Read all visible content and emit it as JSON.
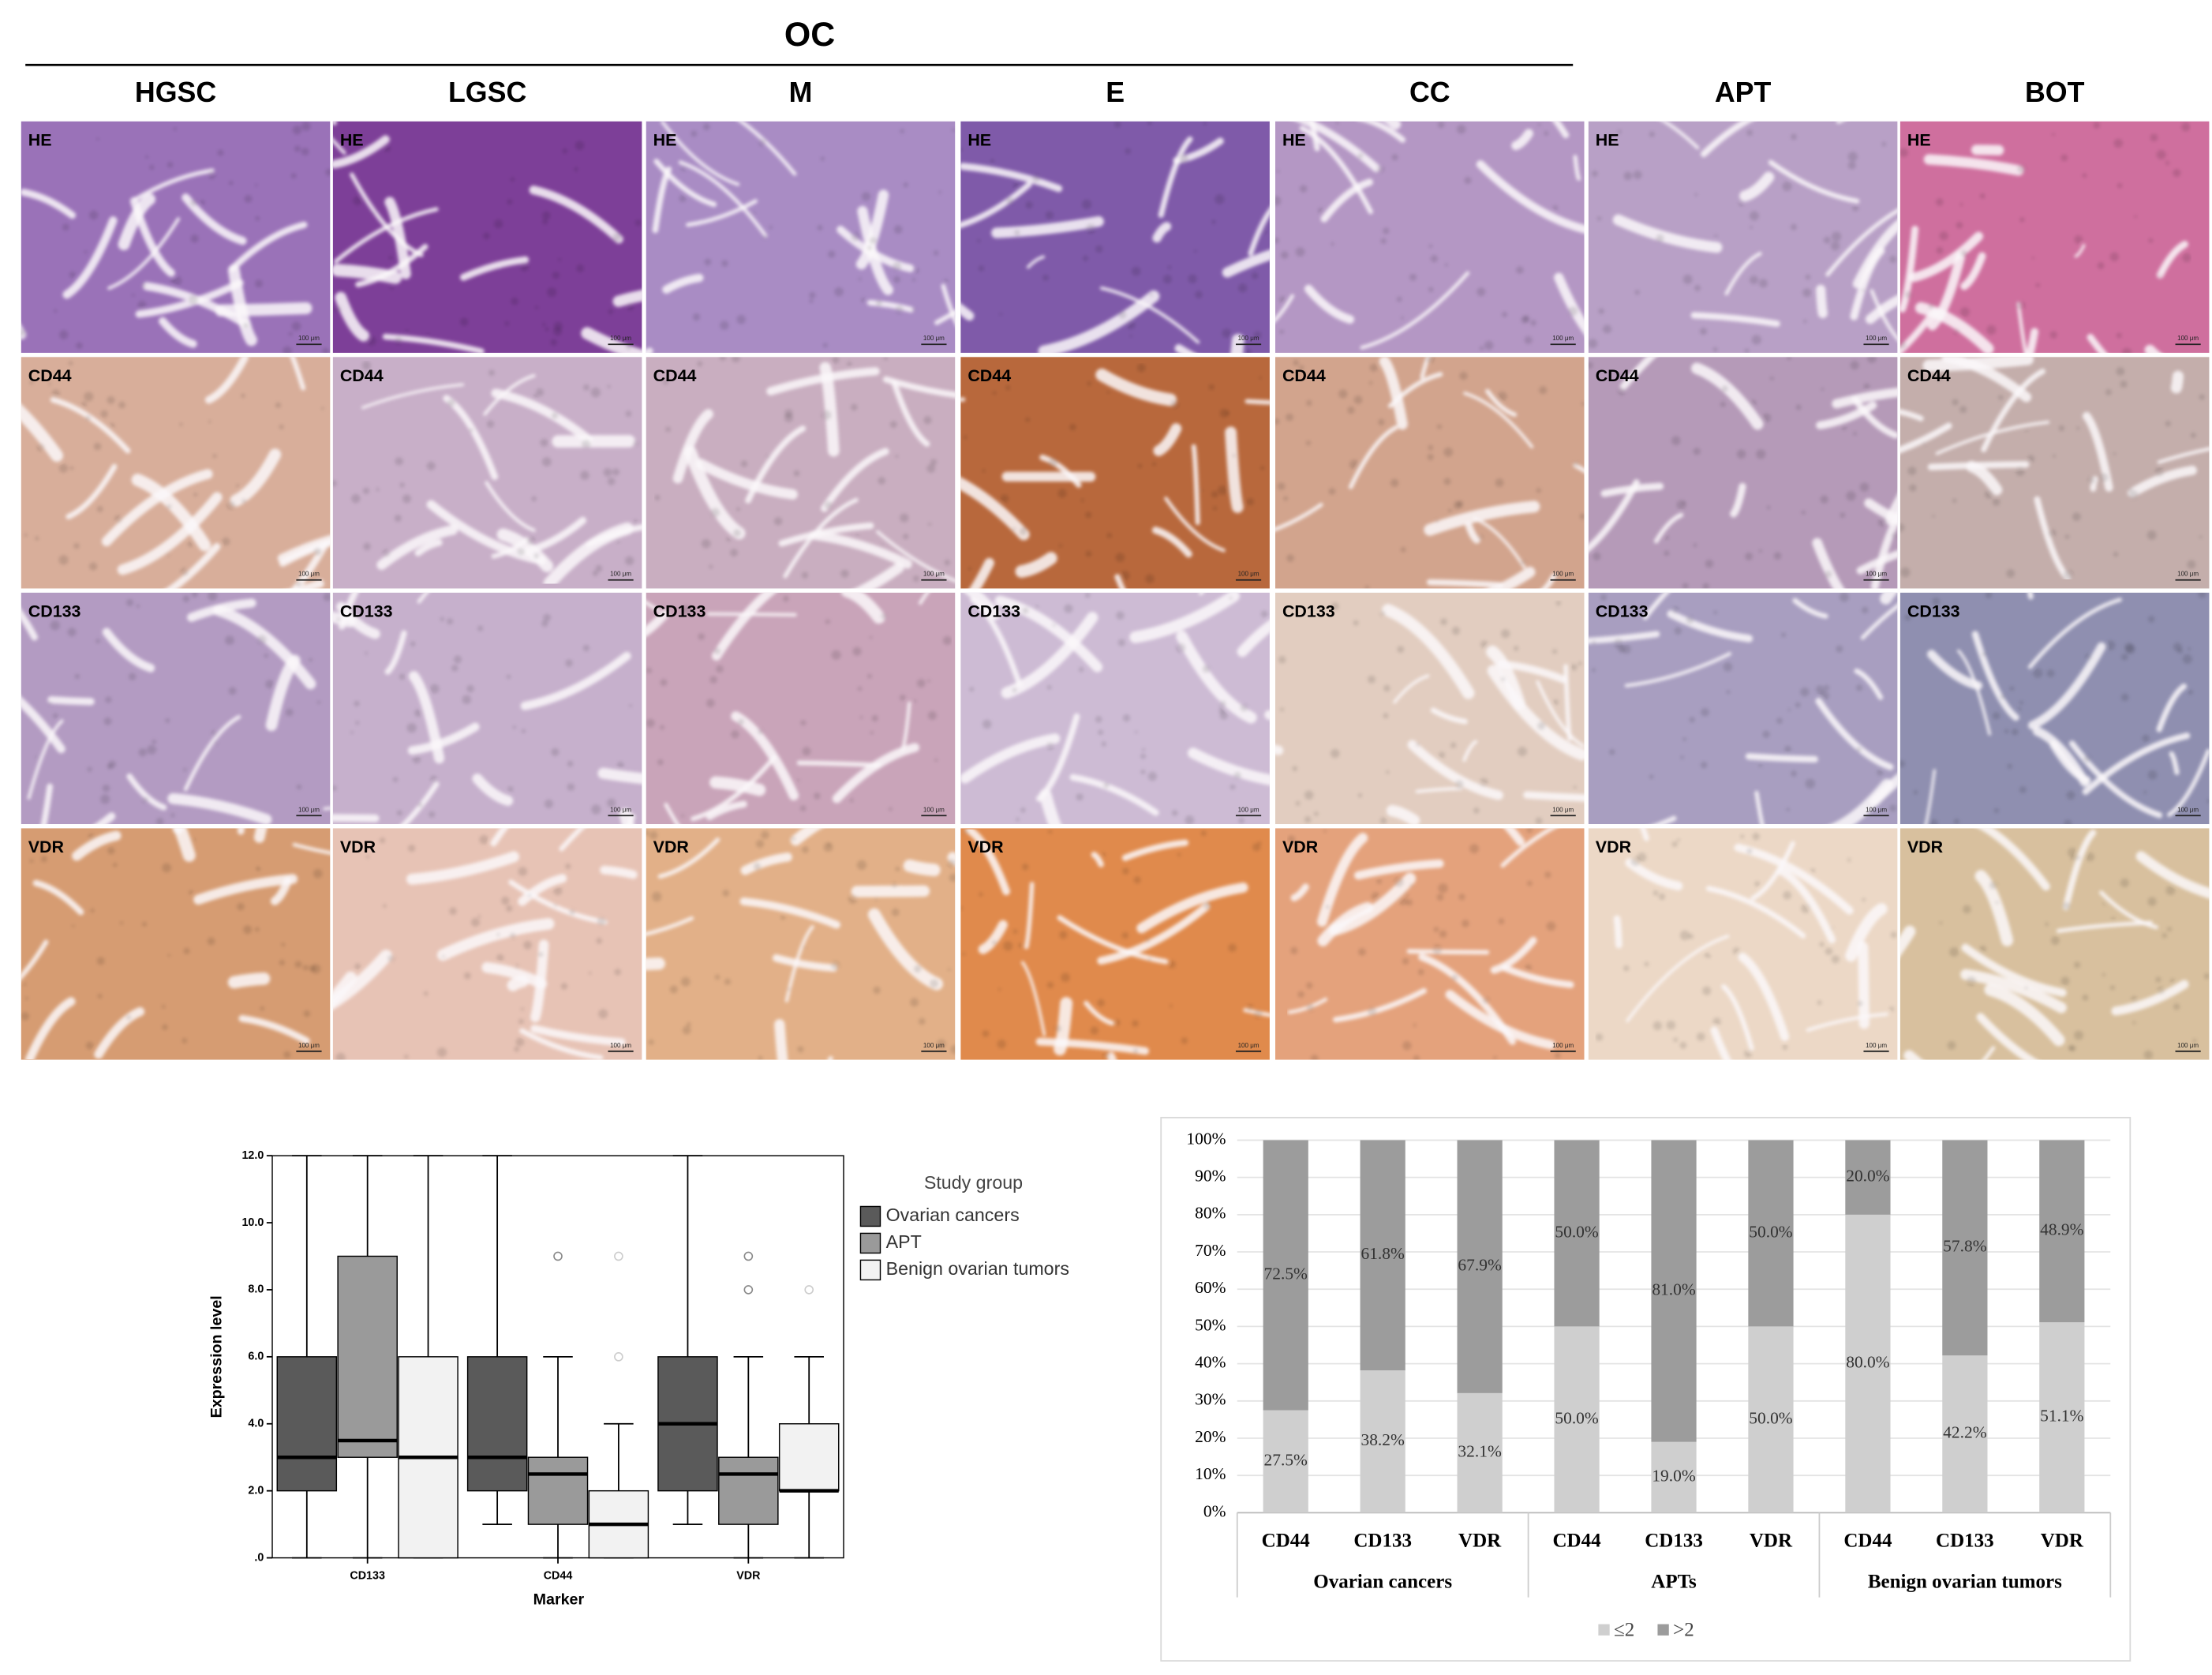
{
  "figure": {
    "group_label": "OC",
    "columns": [
      "HGSC",
      "LGSC",
      "M",
      "E",
      "CC",
      "APT",
      "BOT"
    ],
    "rows": [
      "HE",
      "CD44",
      "CD133",
      "VDR"
    ],
    "scale_bar": "100 μm"
  },
  "chart_data": [
    {
      "type": "box",
      "categories": [
        "CD133",
        "CD44",
        "VDR"
      ],
      "x_label": "Marker",
      "y_label": "Expression level",
      "ylim": [
        0,
        12
      ],
      "yticks": [
        {
          "value": 0,
          "label": ".0"
        },
        {
          "value": 2,
          "label": "2.0"
        },
        {
          "value": 4,
          "label": "4.0"
        },
        {
          "value": 6,
          "label": "6.0"
        },
        {
          "value": 8,
          "label": "8.0"
        },
        {
          "value": 10,
          "label": "10.0"
        },
        {
          "value": 12,
          "label": "12.0"
        }
      ],
      "legend_title": "Study group",
      "series": [
        {
          "name": "Ovarian cancers",
          "color": "#5a5a5a",
          "values": [
            {
              "min": 0,
              "q1": 2,
              "median": 3,
              "q3": 6,
              "max": 12,
              "outliers": []
            },
            {
              "min": 1,
              "q1": 2,
              "median": 3,
              "q3": 6,
              "max": 12,
              "outliers": []
            },
            {
              "min": 1,
              "q1": 2,
              "median": 4,
              "q3": 6,
              "max": 12,
              "outliers": []
            }
          ]
        },
        {
          "name": "APT",
          "color": "#9a9a9a",
          "values": [
            {
              "min": 0,
              "q1": 3,
              "median": 3.5,
              "q3": 9,
              "max": 12,
              "outliers": []
            },
            {
              "min": 0,
              "q1": 1,
              "median": 2.5,
              "q3": 3,
              "max": 6,
              "outliers": [
                9
              ]
            },
            {
              "min": 0,
              "q1": 1,
              "median": 2.5,
              "q3": 3,
              "max": 6,
              "outliers": [
                8,
                9
              ]
            }
          ]
        },
        {
          "name": "Benign ovarian tumors",
          "color": "#f2f2f2",
          "values": [
            {
              "min": 0,
              "q1": 0,
              "median": 3,
              "q3": 6,
              "max": 12,
              "outliers": []
            },
            {
              "min": 0,
              "q1": 0,
              "median": 1,
              "q3": 2,
              "max": 4,
              "outliers": [
                6,
                9
              ]
            },
            {
              "min": 0,
              "q1": 2,
              "median": 2,
              "q3": 4,
              "max": 6,
              "outliers": [
                8
              ]
            }
          ]
        }
      ]
    },
    {
      "type": "stacked_bar",
      "categories": [
        "CD44",
        "CD133",
        "VDR",
        "CD44",
        "CD133",
        "VDR",
        "CD44",
        "CD133",
        "VDR"
      ],
      "groups": [
        "Ovarian cancers",
        "APTs",
        "Benign ovarian tumors"
      ],
      "ylim": [
        0,
        100
      ],
      "yticks": [
        {
          "value": 0,
          "label": "0%"
        },
        {
          "value": 10,
          "label": "10%"
        },
        {
          "value": 20,
          "label": "20%"
        },
        {
          "value": 30,
          "label": "30%"
        },
        {
          "value": 40,
          "label": "40%"
        },
        {
          "value": 50,
          "label": "50%"
        },
        {
          "value": 60,
          "label": "60%"
        },
        {
          "value": 70,
          "label": "70%"
        },
        {
          "value": 80,
          "label": "80%"
        },
        {
          "value": 90,
          "label": "90%"
        },
        {
          "value": 100,
          "label": "100%"
        }
      ],
      "grid": true,
      "legend": "bottom",
      "series": [
        {
          "name": "≤2",
          "color": "#cfcfcf",
          "values": [
            27.5,
            38.2,
            32.1,
            50,
            19,
            50,
            80,
            42.2,
            51.1
          ],
          "value_labels": [
            "27.5%",
            "38.2%",
            "32.1%",
            "50.0%",
            "19.0%",
            "50.0%",
            "80.0%",
            "42.2%",
            "51.1%"
          ]
        },
        {
          "name": ">2",
          "color": "#9c9c9c",
          "values": [
            72.5,
            61.8,
            67.9,
            50,
            81,
            50,
            20,
            57.8,
            48.9
          ],
          "value_labels": [
            "72.5%",
            "61.8%",
            "67.9%",
            "50.0%",
            "81.0%",
            "50.0%",
            "20.0%",
            "57.8%",
            "48.9%"
          ]
        }
      ]
    }
  ]
}
